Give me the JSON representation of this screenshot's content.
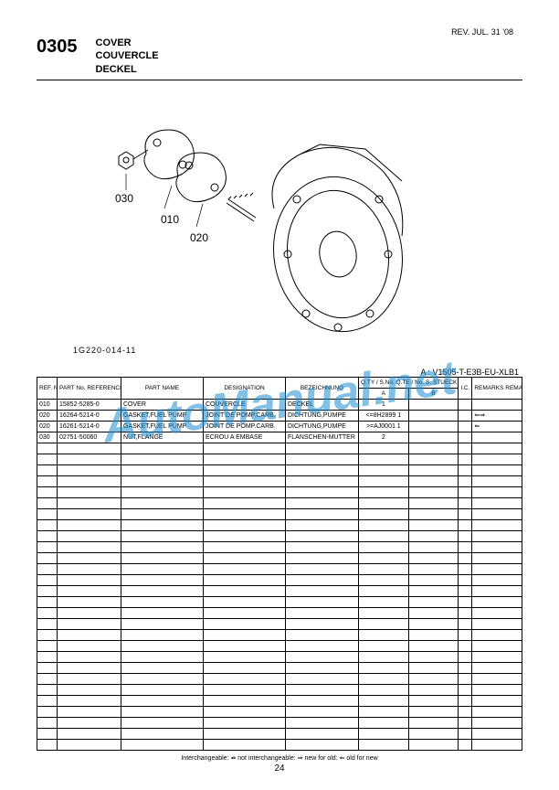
{
  "revision": "REV. JUL. 31 '08",
  "section_number": "0305",
  "section_titles": [
    "COVER",
    "COUVERCLE",
    "DECKEL"
  ],
  "callouts": {
    "c030": "030",
    "c010": "010",
    "c020": "020"
  },
  "figure_id": "1G220-014-11",
  "model_line": "A : V1505-T-E3B-EU-XLB1",
  "watermark": "AutoManual.net",
  "table": {
    "headers": {
      "ref": "REF. No.\nPOS. No.\nBILD-Nr.",
      "part": "PART No.\nREFERENCE\nBESELL-Nr.",
      "name": "PART NAME",
      "designation": "DESIGNATION",
      "bezeichnung": "BEZEICHNUNG",
      "qty_group": "Q.TY / S.No.\nQ.TE / No. S.\nSTUECK / S.Nr.",
      "a": "A",
      "b": "B",
      "ic": "I.C.",
      "remarks": "REMARKS\nREMARQUES\nBEMERKUNGEN"
    },
    "rows": [
      {
        "ref": "010",
        "part": "15852-5285-0",
        "name": "COVER",
        "des": "COUVERCLE",
        "bez": "DECKEL",
        "a": "1",
        "b": "",
        "ic": "",
        "rem": ""
      },
      {
        "ref": "020",
        "part": "16264-5214-0",
        "name": "GASKET,FUEL PUMP",
        "des": "JOINT DE POMP.CARB.",
        "bez": "DICHTUNG,PUMPE",
        "a": "<=8H2899\n1",
        "b": "",
        "ic": "",
        "rem": "⇐⇒"
      },
      {
        "ref": "020",
        "part": "16261-5214-0",
        "name": "GASKET,FUEL PUMP",
        "des": "JOINT DE POMP.CARB.",
        "bez": "DICHTUNG,PUMPE",
        "a": ">=AJ0001\n1",
        "b": "",
        "ic": "",
        "rem": "⇐"
      },
      {
        "ref": "030",
        "part": "02751-50060",
        "name": "NUT,FLANGE",
        "des": "ECROU A EMBASE",
        "bez": "FLANSCHEN-MUTTER",
        "a": "2",
        "b": "",
        "ic": "",
        "rem": ""
      }
    ],
    "empty_rows": 28
  },
  "footer_note": "Interchangeable: ⇏ not interchangeable: ⇒ new for old: ⇐ old for new",
  "page_number": "24"
}
